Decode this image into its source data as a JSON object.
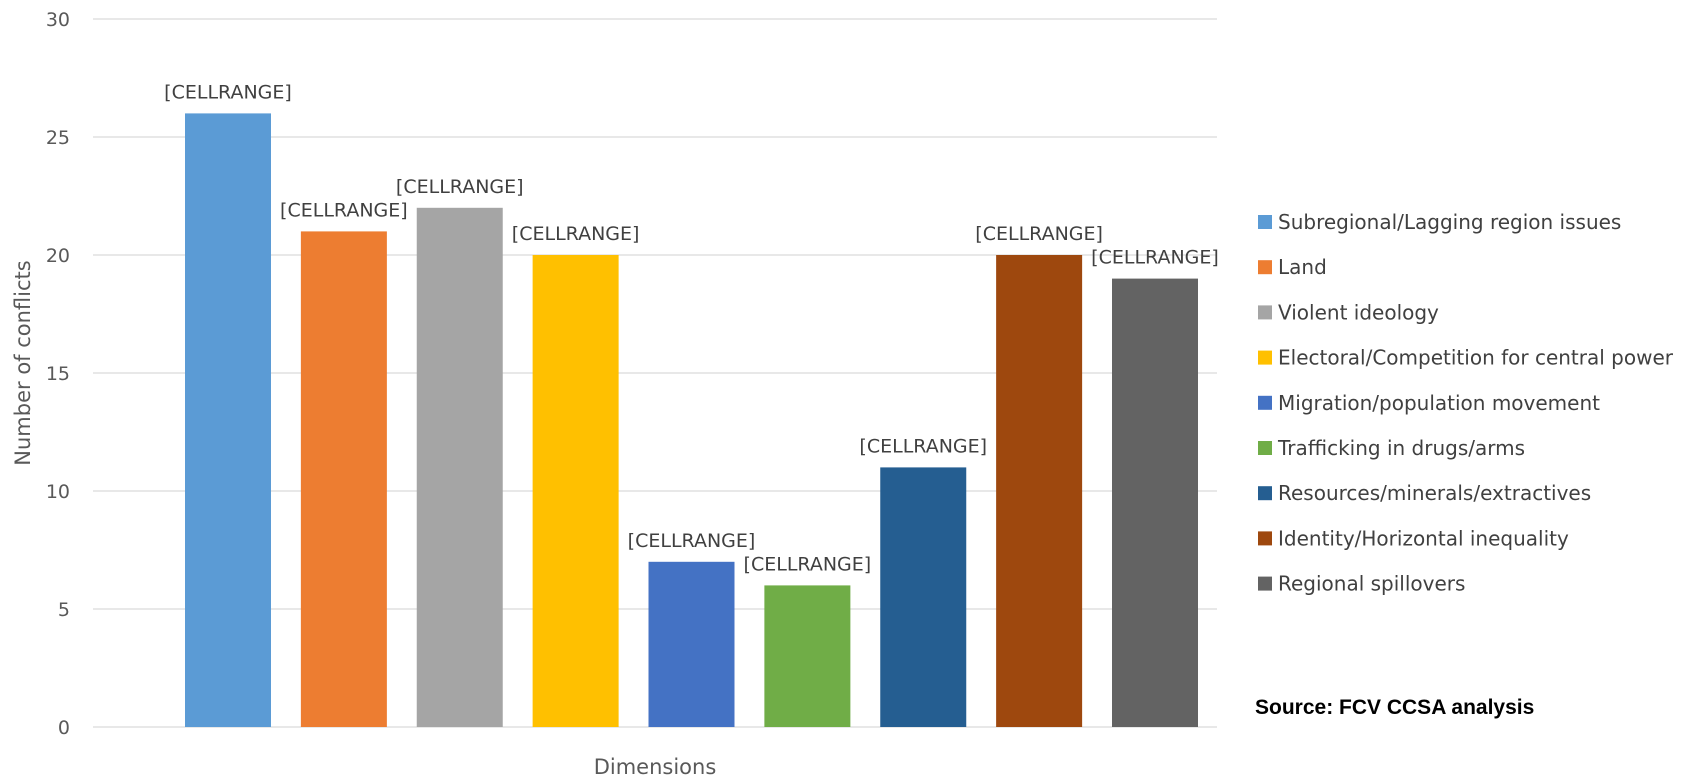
{
  "chart_data": {
    "type": "bar",
    "title": "",
    "xlabel": "Dimensions",
    "ylabel": "Number of conflicts",
    "ylim": [
      0,
      30
    ],
    "yticks": [
      0,
      5,
      10,
      15,
      20,
      25,
      30
    ],
    "grid": true,
    "legend_position": "right",
    "categories": [
      "Subregional/Lagging region issues",
      "Land",
      "Violent ideology",
      "Electoral/Competition for central power",
      "Migration/population movement",
      "Trafficking in drugs/arms",
      "Resources/minerals/extractives",
      "Identity/Horizontal inequality",
      "Regional spillovers"
    ],
    "values": [
      26,
      21,
      22,
      20,
      7,
      6,
      11,
      20,
      19
    ],
    "data_labels": [
      "[CELLRANGE]",
      "[CELLRANGE]",
      "[CELLRANGE]",
      "[CELLRANGE]",
      "[CELLRANGE]",
      "[CELLRANGE]",
      "[CELLRANGE]",
      "[CELLRANGE]",
      "[CELLRANGE]"
    ],
    "colors": [
      "#5b9bd5",
      "#ed7d31",
      "#a5a5a5",
      "#ffc000",
      "#4472c4",
      "#70ad47",
      "#255e91",
      "#9e480e",
      "#636363"
    ],
    "source": "Source: FCV CCSA analysis"
  }
}
